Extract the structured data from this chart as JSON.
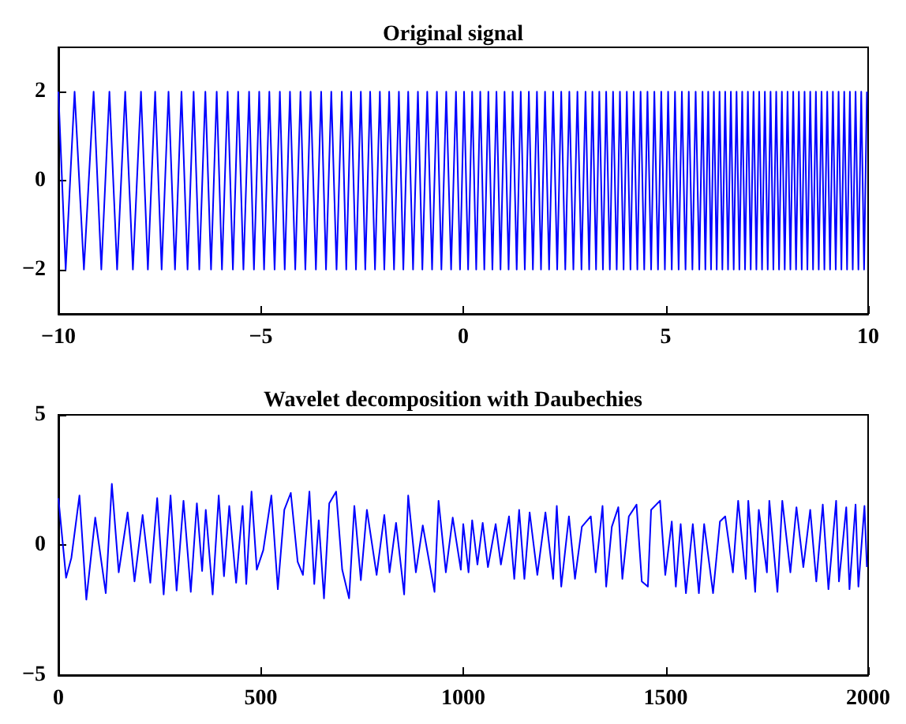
{
  "chart_data": [
    {
      "type": "line",
      "title": "Original signal",
      "xlim": [
        -10,
        10
      ],
      "xticks": [
        -10,
        -5,
        0,
        5,
        10
      ],
      "ylim": [
        -3,
        3
      ],
      "yticks": [
        -2,
        0,
        2
      ],
      "grid": false,
      "x": [
        -10,
        -9.82,
        -9.6,
        -9.37,
        -9.13,
        -8.94,
        -8.74,
        -8.55,
        -8.35,
        -8.16,
        -7.96,
        -7.79,
        -7.61,
        -7.45,
        -7.28,
        -7.12,
        -6.96,
        -6.81,
        -6.66,
        -6.52,
        -6.37,
        -6.23,
        -6.09,
        -5.96,
        -5.82,
        -5.69,
        -5.56,
        -5.43,
        -5.29,
        -5.17,
        -5.04,
        -4.92,
        -4.79,
        -4.66,
        -4.53,
        -4.41,
        -4.28,
        -4.15,
        -4.02,
        -3.9,
        -3.77,
        -3.64,
        -3.51,
        -3.39,
        -3.26,
        -3.13,
        -3.0,
        -2.89,
        -2.77,
        -2.65,
        -2.53,
        -2.42,
        -2.3,
        -2.18,
        -2.06,
        -1.95,
        -1.83,
        -1.71,
        -1.59,
        -1.48,
        -1.36,
        -1.24,
        -1.12,
        -1.01,
        -0.89,
        -0.77,
        -0.65,
        -0.54,
        -0.42,
        -0.3,
        -0.18,
        -0.08,
        0.02,
        0.12,
        0.22,
        0.32,
        0.42,
        0.52,
        0.62,
        0.72,
        0.82,
        0.92,
        1.02,
        1.12,
        1.22,
        1.32,
        1.42,
        1.52,
        1.62,
        1.72,
        1.82,
        1.92,
        2.02,
        2.12,
        2.22,
        2.32,
        2.42,
        2.52,
        2.62,
        2.72,
        2.82,
        2.92,
        3.02,
        3.11,
        3.19,
        3.28,
        3.36,
        3.45,
        3.53,
        3.62,
        3.7,
        3.79,
        3.87,
        3.96,
        4.04,
        4.13,
        4.21,
        4.3,
        4.38,
        4.47,
        4.55,
        4.64,
        4.72,
        4.81,
        4.89,
        4.98,
        5.06,
        5.15,
        5.23,
        5.32,
        5.4,
        5.49,
        5.57,
        5.66,
        5.74,
        5.83,
        5.91,
        5.98,
        6.05,
        6.12,
        6.19,
        6.26,
        6.33,
        6.4,
        6.47,
        6.54,
        6.61,
        6.68,
        6.75,
        6.82,
        6.89,
        6.96,
        7.03,
        7.1,
        7.17,
        7.24,
        7.31,
        7.38,
        7.45,
        7.52,
        7.59,
        7.66,
        7.73,
        7.8,
        7.87,
        7.94,
        8.01,
        8.08,
        8.15,
        8.22,
        8.29,
        8.36,
        8.43,
        8.5,
        8.57,
        8.64,
        8.71,
        8.78,
        8.85,
        8.92,
        8.99,
        9.06,
        9.13,
        9.2,
        9.27,
        9.34,
        9.41,
        9.48,
        9.55,
        9.62,
        9.69,
        9.76,
        9.83,
        9.9,
        9.97
      ],
      "series": [
        {
          "color": "#0000ff",
          "values": [
            2,
            -2,
            2,
            -2,
            2,
            -2,
            2,
            -2,
            2,
            -2,
            2,
            -2,
            2,
            -2,
            2,
            -2,
            2,
            -2,
            2,
            -2,
            2,
            -2,
            2,
            -2,
            2,
            -2,
            2,
            -2,
            2,
            -2,
            2,
            -2,
            2,
            -2,
            2,
            -2,
            2,
            -2,
            2,
            -2,
            2,
            -2,
            2,
            -2,
            2,
            -2,
            2,
            -2,
            2,
            -2,
            2,
            -2,
            2,
            -2,
            2,
            -2,
            2,
            -2,
            2,
            -2,
            2,
            -2,
            2,
            -2,
            2,
            -2,
            2,
            -2,
            2,
            -2,
            2,
            -2,
            2,
            -2,
            2,
            -2,
            2,
            -2,
            2,
            -2,
            2,
            -2,
            2,
            -2,
            2,
            -2,
            2,
            -2,
            2,
            -2,
            2,
            -2,
            2,
            -2,
            2,
            -2,
            2,
            -2,
            2,
            -2,
            2,
            -2,
            2,
            -2,
            2,
            -2,
            2,
            -2,
            2,
            -2,
            2,
            -2,
            2,
            -2,
            2,
            -2,
            2,
            -2,
            2,
            -2,
            2,
            -2,
            2,
            -2,
            2,
            -2,
            2,
            -2,
            2,
            -2,
            2,
            -2,
            2,
            -2,
            2,
            -2,
            2,
            -2,
            2,
            -2,
            2,
            -2,
            2,
            -2,
            2,
            -2,
            2,
            -2,
            2,
            -2,
            2,
            -2,
            2,
            -2,
            2,
            -2,
            2,
            -2,
            2,
            -2,
            2,
            -2,
            2,
            -2,
            2,
            -2,
            2,
            -2,
            2,
            -2,
            2,
            -2,
            2,
            -2,
            2,
            -2,
            2,
            -2,
            2,
            -2,
            2,
            -2,
            2,
            -2,
            2,
            -2,
            2,
            -2,
            2,
            -2,
            2,
            -2,
            2,
            -2,
            2
          ]
        }
      ]
    },
    {
      "type": "line",
      "title": "Wavelet decomposition with Daubechies",
      "xlim": [
        0,
        2000
      ],
      "xticks": [
        0,
        500,
        1000,
        1500,
        2000
      ],
      "ylim": [
        -5,
        5
      ],
      "yticks": [
        -5,
        0,
        5
      ],
      "grid": false,
      "x": [
        0,
        19,
        32,
        52,
        69,
        91,
        117,
        132,
        149,
        171,
        188,
        208,
        227,
        244,
        260,
        277,
        292,
        309,
        327,
        342,
        355,
        364,
        381,
        396,
        409,
        422,
        439,
        455,
        464,
        477,
        490,
        506,
        526,
        542,
        558,
        574,
        591,
        604,
        620,
        632,
        643,
        656,
        669,
        686,
        701,
        718,
        731,
        747,
        762,
        786,
        805,
        818,
        834,
        854,
        864,
        883,
        900,
        929,
        939,
        957,
        974,
        994,
        1000,
        1013,
        1022,
        1035,
        1048,
        1061,
        1080,
        1093,
        1113,
        1126,
        1138,
        1151,
        1164,
        1183,
        1203,
        1222,
        1231,
        1242,
        1261,
        1276,
        1293,
        1315,
        1327,
        1344,
        1353,
        1367,
        1383,
        1393,
        1409,
        1428,
        1441,
        1456,
        1464,
        1486,
        1499,
        1515,
        1525,
        1537,
        1550,
        1567,
        1582,
        1595,
        1617,
        1634,
        1647,
        1666,
        1679,
        1698,
        1704,
        1721,
        1730,
        1750,
        1756,
        1776,
        1788,
        1808,
        1823,
        1840,
        1857,
        1872,
        1888,
        1902,
        1921,
        1928,
        1946,
        1954,
        1969,
        1976,
        1991,
        1997
      ],
      "series": [
        {
          "color": "#0000ff",
          "values": [
            1.8,
            -1.26,
            -0.5,
            1.9,
            -2.1,
            1.05,
            -1.85,
            2.35,
            -1.05,
            1.25,
            -1.4,
            1.15,
            -1.45,
            1.8,
            -1.9,
            1.9,
            -1.75,
            1.7,
            -1.8,
            1.6,
            -1.0,
            1.35,
            -1.9,
            1.9,
            -1.2,
            1.5,
            -1.45,
            1.5,
            -1.5,
            2.05,
            -0.95,
            -0.2,
            1.9,
            -1.7,
            1.35,
            2.0,
            -0.65,
            -1.15,
            2.05,
            -1.5,
            0.95,
            -2.05,
            1.6,
            2.05,
            -0.95,
            -2.05,
            1.5,
            -1.35,
            1.35,
            -1.15,
            1.15,
            -1.05,
            0.85,
            -1.9,
            1.9,
            -1.05,
            0.75,
            -1.8,
            1.7,
            -1.05,
            1.05,
            -0.95,
            0.8,
            -1.05,
            0.95,
            -0.75,
            0.85,
            -0.85,
            0.8,
            -0.75,
            1.1,
            -1.3,
            1.35,
            -1.3,
            1.25,
            -1.15,
            1.25,
            -1.3,
            1.5,
            -1.6,
            1.1,
            -1.3,
            0.7,
            1.1,
            -1.05,
            1.5,
            -1.6,
            0.7,
            1.45,
            -1.3,
            1.1,
            1.55,
            -1.4,
            -1.6,
            1.35,
            1.7,
            -1.15,
            0.9,
            -1.6,
            0.8,
            -1.85,
            0.8,
            -1.85,
            0.8,
            -1.85,
            0.9,
            1.1,
            -1.05,
            1.7,
            -1.3,
            1.7,
            -1.8,
            1.35,
            -1.05,
            1.7,
            -1.8,
            1.7,
            -1.05,
            1.45,
            -0.85,
            1.35,
            -1.4,
            1.55,
            -1.7,
            1.7,
            -1.4,
            1.45,
            -1.7,
            1.55,
            -1.6,
            1.5,
            -0.85
          ]
        }
      ]
    }
  ]
}
